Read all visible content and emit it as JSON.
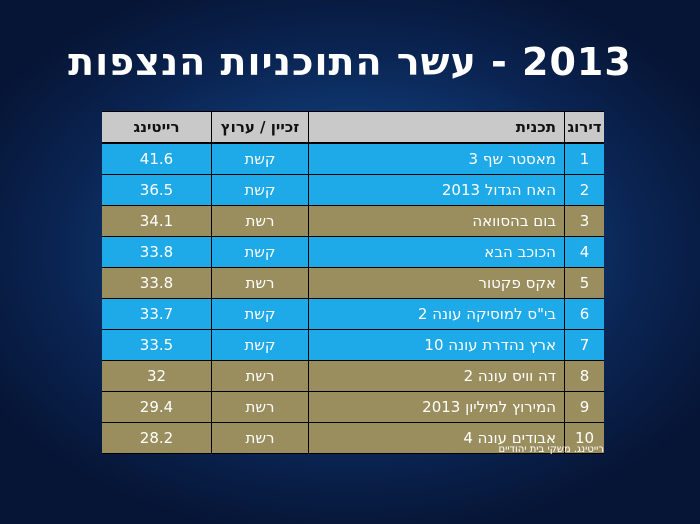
{
  "title": "2013 - עשר התוכניות הנצפות",
  "headers": {
    "rank": "דירוג",
    "show": "תכנית",
    "channel": "זכיין / ערוץ",
    "rating": "רייטינג"
  },
  "rows": [
    {
      "rank": "1",
      "show": "מאסטר שף 3",
      "channel": "קשת",
      "rating": "41.6",
      "color": "#1ea9e8"
    },
    {
      "rank": "2",
      "show": "האח הגדול 2013",
      "channel": "קשת",
      "rating": "36.5",
      "color": "#1ea9e8"
    },
    {
      "rank": "3",
      "show": "בום בהסוואה",
      "channel": "רשת",
      "rating": "34.1",
      "color": "#9b8e5e"
    },
    {
      "rank": "4",
      "show": "הכוכב הבא",
      "channel": "קשת",
      "rating": "33.8",
      "color": "#1ea9e8"
    },
    {
      "rank": "5",
      "show": "אקס פקטור",
      "channel": "רשת",
      "rating": "33.8",
      "color": "#9b8e5e"
    },
    {
      "rank": "6",
      "show": "בי\"ס למוסיקה עונה 2",
      "channel": "קשת",
      "rating": "33.7",
      "color": "#1ea9e8"
    },
    {
      "rank": "7",
      "show": "ארץ נהדרת עונה 10",
      "channel": "קשת",
      "rating": "33.5",
      "color": "#1ea9e8"
    },
    {
      "rank": "8",
      "show": "דה וויס עונה 2",
      "channel": "רשת",
      "rating": "32",
      "color": "#9b8e5e"
    },
    {
      "rank": "9",
      "show": "המירוץ למיליון 2013",
      "channel": "רשת",
      "rating": "29.4",
      "color": "#9b8e5e"
    },
    {
      "rank": "10",
      "show": "אבודים עונה 4",
      "channel": "רשת",
      "rating": "28.2",
      "color": "#9b8e5e"
    }
  ],
  "footnote": "רייטינג. משקי בית יהודיים",
  "colors": {
    "keshet": "#1ea9e8",
    "reshet": "#9b8e5e",
    "header": "#c9c9c9"
  }
}
